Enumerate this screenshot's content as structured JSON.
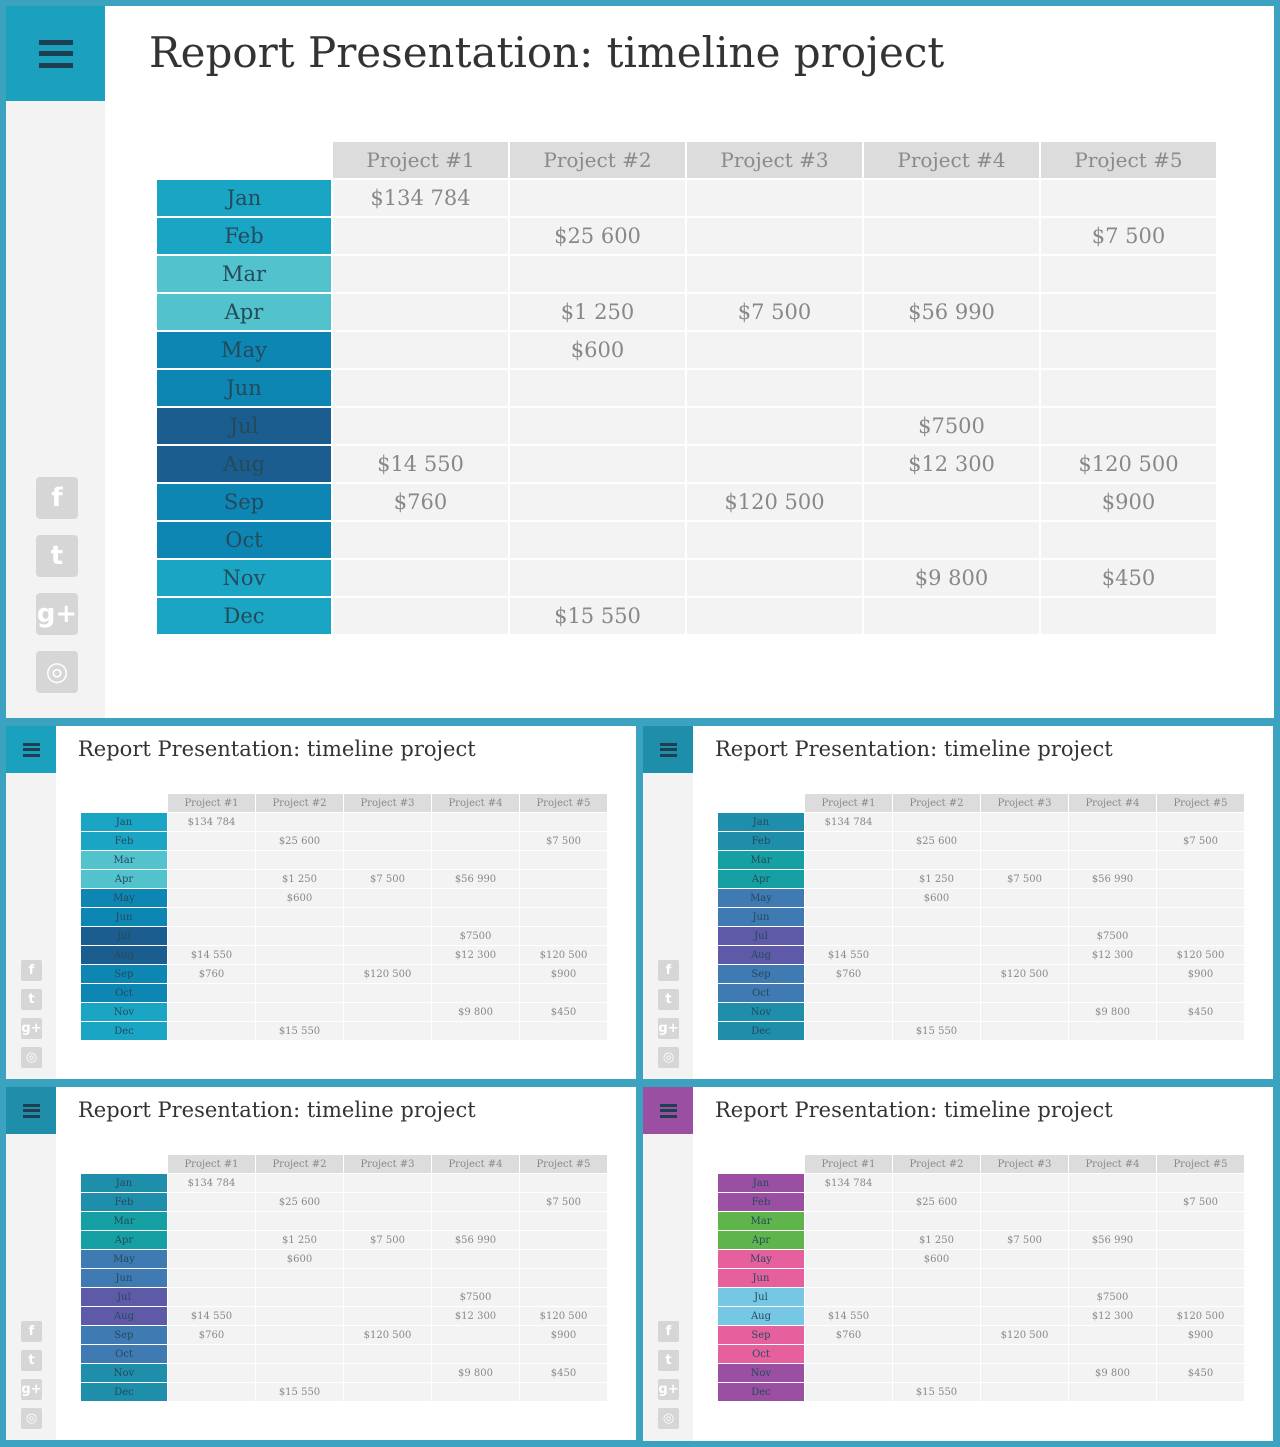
{
  "title": "Report Presentation: timeline project",
  "columns": [
    "Project #1",
    "Project #2",
    "Project #3",
    "Project #4",
    "Project #5"
  ],
  "rows": [
    {
      "month": "Jan",
      "values": [
        "$134 784",
        "",
        "",
        "",
        ""
      ]
    },
    {
      "month": "Feb",
      "values": [
        "",
        "$25 600",
        "",
        "",
        "$7 500"
      ]
    },
    {
      "month": "Mar",
      "values": [
        "",
        "",
        "",
        "",
        ""
      ]
    },
    {
      "month": "Apr",
      "values": [
        "",
        "$1 250",
        "$7 500",
        "$56 990",
        ""
      ]
    },
    {
      "month": "May",
      "values": [
        "",
        "$600",
        "",
        "",
        ""
      ]
    },
    {
      "month": "Jun",
      "values": [
        "",
        "",
        "",
        "",
        ""
      ]
    },
    {
      "month": "Jul",
      "values": [
        "",
        "",
        "",
        "$7500",
        ""
      ]
    },
    {
      "month": "Aug",
      "values": [
        "$14 550",
        "",
        "",
        "$12 300",
        "$120 500"
      ]
    },
    {
      "month": "Sep",
      "values": [
        "$760",
        "",
        "$120 500",
        "",
        "$900"
      ]
    },
    {
      "month": "Oct",
      "values": [
        "",
        "",
        "",
        "",
        ""
      ]
    },
    {
      "month": "Nov",
      "values": [
        "",
        "",
        "",
        "$9 800",
        "$450"
      ]
    },
    {
      "month": "Dec",
      "values": [
        "",
        "$15 550",
        "",
        "",
        ""
      ]
    }
  ],
  "social_icons": [
    {
      "name": "facebook-icon",
      "glyph": "f"
    },
    {
      "name": "twitter-icon",
      "glyph": "t"
    },
    {
      "name": "google-plus-icon",
      "glyph": "g+"
    },
    {
      "name": "instagram-icon",
      "glyph": "◎"
    }
  ],
  "themes": [
    {
      "id": "panel-main",
      "menu_color": "#1ba0be",
      "month_colors": [
        "#1aa5c4",
        "#1aa5c4",
        "#52c2cc",
        "#52c2cc",
        "#0e86b4",
        "#0e86b4",
        "#1b5d8e",
        "#1b5d8e",
        "#0e86b4",
        "#0e86b4",
        "#1aa5c4",
        "#1aa5c4"
      ]
    },
    {
      "id": "panel-a",
      "menu_color": "#1ba0be",
      "month_colors": [
        "#1aa5c4",
        "#1aa5c4",
        "#52c2cc",
        "#52c2cc",
        "#0e86b4",
        "#0e86b4",
        "#1b5d8e",
        "#1b5d8e",
        "#0e86b4",
        "#0e86b4",
        "#1aa5c4",
        "#1aa5c4"
      ]
    },
    {
      "id": "panel-b",
      "menu_color": "#1e8eab",
      "month_colors": [
        "#1e8eab",
        "#1e8eab",
        "#16a0a4",
        "#16a0a4",
        "#3f7ab3",
        "#3f7ab3",
        "#5e5aa8",
        "#5e5aa8",
        "#3f7ab3",
        "#3f7ab3",
        "#1e8eab",
        "#1e8eab"
      ]
    },
    {
      "id": "panel-c",
      "menu_color": "#1e8eab",
      "month_colors": [
        "#1e8eab",
        "#1e8eab",
        "#16a0a4",
        "#16a0a4",
        "#3f7ab3",
        "#3f7ab3",
        "#5e5aa8",
        "#5e5aa8",
        "#3f7ab3",
        "#3f7ab3",
        "#1e8eab",
        "#1e8eab"
      ]
    },
    {
      "id": "panel-d",
      "menu_color": "#9b4fa3",
      "month_colors": [
        "#9b4fa3",
        "#9b4fa3",
        "#5fb54b",
        "#5fb54b",
        "#e7609e",
        "#e7609e",
        "#76c7e4",
        "#76c7e4",
        "#e7609e",
        "#e7609e",
        "#9b4fa3",
        "#9b4fa3"
      ]
    }
  ]
}
